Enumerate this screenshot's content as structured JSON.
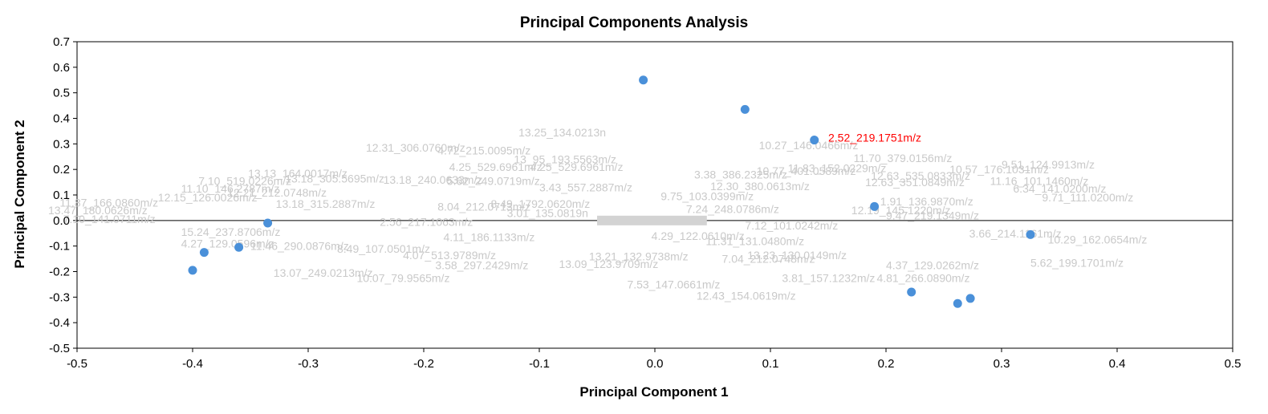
{
  "chart_data": {
    "type": "scatter",
    "title": "Principal Components Analysis",
    "xlabel": "Principal Component 1",
    "ylabel": "Principal Component 2",
    "xlim": [
      -0.5,
      0.5
    ],
    "ylim": [
      -0.5,
      0.7
    ],
    "x_ticks": [
      "-0.5",
      "-0.4",
      "-0.3",
      "-0.2",
      "-0.1",
      "0.0",
      "0.1",
      "0.2",
      "0.3",
      "0.4",
      "0.5"
    ],
    "y_ticks": [
      "0.7",
      "0.6",
      "0.5",
      "0.4",
      "0.3",
      "0.2",
      "0.1",
      "0.0",
      "-0.1",
      "-0.2",
      "-0.3",
      "-0.4",
      "-0.5"
    ],
    "marker_color": "#4a90d9",
    "loading_label_color": "#c9c9c9",
    "highlight_color": "#ff0000",
    "scores": [
      {
        "x": -0.01,
        "y": 0.55
      },
      {
        "x": 0.078,
        "y": 0.435
      },
      {
        "x": 0.138,
        "y": 0.315
      },
      {
        "x": 0.19,
        "y": 0.055
      },
      {
        "x": 0.325,
        "y": -0.055
      },
      {
        "x": -0.335,
        "y": -0.01
      },
      {
        "x": -0.36,
        "y": -0.105
      },
      {
        "x": -0.39,
        "y": -0.125
      },
      {
        "x": -0.4,
        "y": -0.195
      },
      {
        "x": 0.222,
        "y": -0.28
      },
      {
        "x": 0.262,
        "y": -0.325
      },
      {
        "x": 0.273,
        "y": -0.305
      }
    ],
    "highlighted_loading": {
      "text": "2.52_219.1751m/z",
      "x": 0.15,
      "y": 0.325
    },
    "loading_labels": [
      {
        "text": "13.25_134.0213n",
        "x": -0.118,
        "y": 0.345
      },
      {
        "text": "12.31_306.0760m/z",
        "x": -0.25,
        "y": 0.285
      },
      {
        "text": "4.72_215.0095m/z",
        "x": -0.188,
        "y": 0.275
      },
      {
        "text": "13_95_193.5563m/z",
        "x": -0.122,
        "y": 0.24
      },
      {
        "text": "4.25_529.6961m/z",
        "x": -0.178,
        "y": 0.21
      },
      {
        "text": "4.25_529.6961m/z",
        "x": -0.108,
        "y": 0.21
      },
      {
        "text": "5.62_249.0719m/z",
        "x": -0.18,
        "y": 0.155
      },
      {
        "text": "3.43_557.2887m/z",
        "x": -0.1,
        "y": 0.13
      },
      {
        "text": "8.04_212.0713m/z",
        "x": -0.188,
        "y": 0.055
      },
      {
        "text": "8.49_1792.0620m/z",
        "x": -0.142,
        "y": 0.065
      },
      {
        "text": "3.01_135.0819n",
        "x": -0.128,
        "y": 0.03
      },
      {
        "text": "2.56_217.1063m/z",
        "x": -0.238,
        "y": -0.005
      },
      {
        "text": "4.11_186.1133m/z",
        "x": -0.183,
        "y": -0.065
      },
      {
        "text": "8.49_107.0501m/z",
        "x": -0.275,
        "y": -0.11
      },
      {
        "text": "4.07_513.9789m/z",
        "x": -0.218,
        "y": -0.135
      },
      {
        "text": "3.58_297.2429m/z",
        "x": -0.19,
        "y": -0.175
      },
      {
        "text": "13.07_249.0213m/z",
        "x": -0.33,
        "y": -0.205
      },
      {
        "text": "10.07_79.9565m/z",
        "x": -0.258,
        "y": -0.225
      },
      {
        "text": "13.09_123.9709m/z",
        "x": -0.083,
        "y": -0.17
      },
      {
        "text": "13.21_132.9738m/z",
        "x": -0.057,
        "y": -0.14
      },
      {
        "text": "4.29_122.0610m/z",
        "x": -0.003,
        "y": -0.06
      },
      {
        "text": "7.53_147.0661m/z",
        "x": -0.024,
        "y": -0.25
      },
      {
        "text": "12.43_154.0619m/z",
        "x": 0.036,
        "y": -0.295
      },
      {
        "text": "7.04_212.0748m/z",
        "x": 0.058,
        "y": -0.15
      },
      {
        "text": "7.24_248.0786m/z",
        "x": 0.027,
        "y": 0.045
      },
      {
        "text": "9.75_103.0399m/z",
        "x": 0.005,
        "y": 0.095
      },
      {
        "text": "7.12_101.0242m/z",
        "x": 0.078,
        "y": -0.02
      },
      {
        "text": "11.31_131.0480m/z",
        "x": 0.044,
        "y": -0.08
      },
      {
        "text": "3.38_386.2325m/z",
        "x": 0.034,
        "y": 0.18
      },
      {
        "text": "12.30_380.0613m/z",
        "x": 0.048,
        "y": 0.135
      },
      {
        "text": "10.77_401.0589m/z",
        "x": 0.088,
        "y": 0.195
      },
      {
        "text": "10.27_146.0466m/z",
        "x": 0.09,
        "y": 0.295
      },
      {
        "text": "11.83_152.0229m/z",
        "x": 0.115,
        "y": 0.205
      },
      {
        "text": "11.70_379.0156m/z",
        "x": 0.172,
        "y": 0.245
      },
      {
        "text": "12.63_535.0833m/z",
        "x": 0.187,
        "y": 0.175
      },
      {
        "text": "12.63_351.0849m/z",
        "x": 0.182,
        "y": 0.15
      },
      {
        "text": "12.19_145.1220m/z",
        "x": 0.17,
        "y": 0.04
      },
      {
        "text": "3.81_157.1232m/z",
        "x": 0.11,
        "y": -0.225
      },
      {
        "text": "4.81_266.0890m/z",
        "x": 0.192,
        "y": -0.225
      },
      {
        "text": "13.23_130.0149m/z",
        "x": 0.08,
        "y": -0.135
      },
      {
        "text": "4.37_129.0262m/z",
        "x": 0.2,
        "y": -0.175
      },
      {
        "text": "5.62_199.1701m/z",
        "x": 0.325,
        "y": -0.165
      },
      {
        "text": "10.57_176.1031m/z",
        "x": 0.255,
        "y": 0.2
      },
      {
        "text": "9.51_124.9913m/z",
        "x": 0.3,
        "y": 0.22
      },
      {
        "text": "11.16_101.1460m/z",
        "x": 0.29,
        "y": 0.155
      },
      {
        "text": "6.34_141.0200m/z",
        "x": 0.31,
        "y": 0.125
      },
      {
        "text": "9.71_111.0200m/z",
        "x": 0.335,
        "y": 0.09
      },
      {
        "text": "1.91_136.9870m/z",
        "x": 0.195,
        "y": 0.075
      },
      {
        "text": "9.47_219.1349m/z",
        "x": 0.2,
        "y": 0.02
      },
      {
        "text": "3.66_214.1161m/z",
        "x": 0.272,
        "y": -0.05
      },
      {
        "text": "10.29_162.0654m/z",
        "x": 0.34,
        "y": -0.075
      },
      {
        "text": "11.87_166.0860m/z",
        "x": -0.515,
        "y": 0.07
      },
      {
        "text": "13.47_180.0626m/z",
        "x": -0.525,
        "y": 0.04
      },
      {
        "text": "7.10_141.0711m/z",
        "x": -0.512,
        "y": 0.005
      },
      {
        "text": "15.24_237.8706m/z",
        "x": -0.41,
        "y": -0.045
      },
      {
        "text": "4.27_129.0596m/z",
        "x": -0.41,
        "y": -0.09
      },
      {
        "text": "13.13_164.0017m/z",
        "x": -0.352,
        "y": 0.185
      },
      {
        "text": "13.18_305.5695m/z",
        "x": -0.32,
        "y": 0.165
      },
      {
        "text": "7.10_519.0226m/z",
        "x": -0.395,
        "y": 0.155
      },
      {
        "text": "13.18_315.2887m/z",
        "x": -0.328,
        "y": 0.065
      },
      {
        "text": "13.18_240.0633m/z",
        "x": -0.235,
        "y": 0.16
      },
      {
        "text": "12.21_212.0748m/z",
        "x": -0.37,
        "y": 0.11
      },
      {
        "text": "11.10_146.2787m/z",
        "x": -0.41,
        "y": 0.125
      },
      {
        "text": "11.46_290.0876m/z",
        "x": -0.35,
        "y": -0.1
      },
      {
        "text": "12.15_126.0026m/z",
        "x": -0.43,
        "y": 0.09
      }
    ],
    "loading_cluster": {
      "x_from": -0.05,
      "x_to": 0.045,
      "y": 0.0
    }
  }
}
